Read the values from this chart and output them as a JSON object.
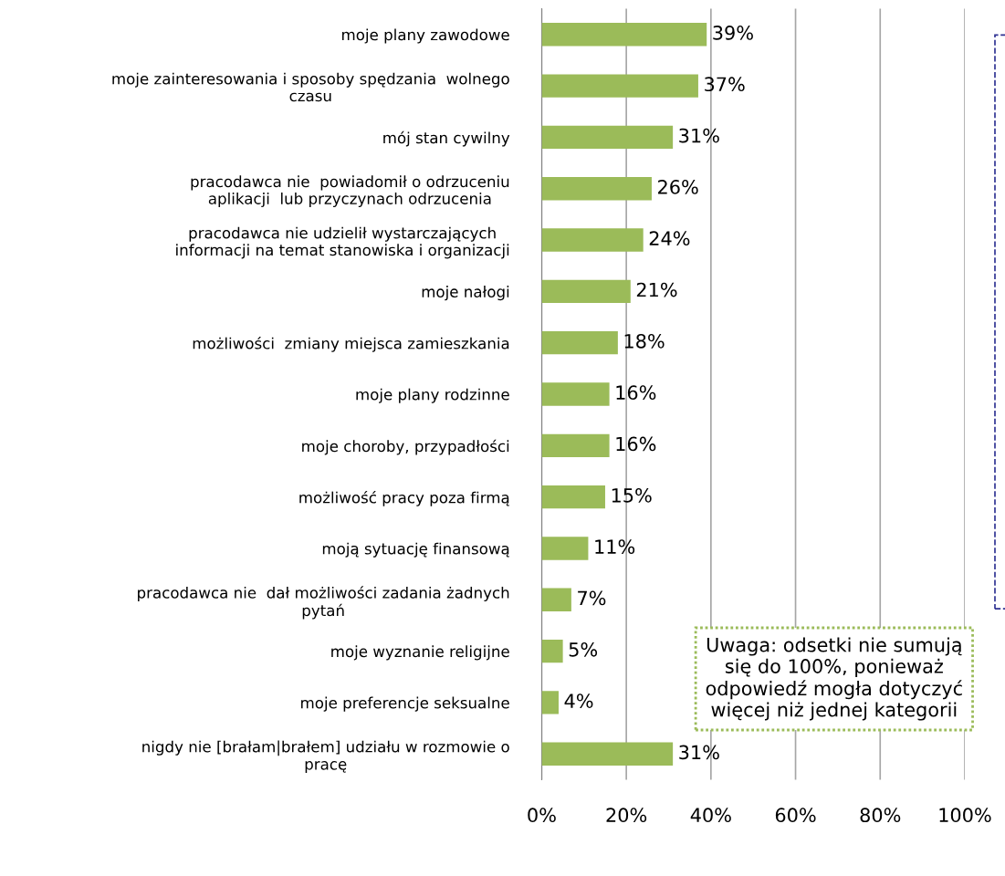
{
  "chart_data": {
    "type": "bar",
    "orientation": "horizontal",
    "categories": [
      "moje plany zawodowe",
      "moje zainteresowania i sposoby spędzania  wolnego\nczasu",
      "mój stan cywilny",
      "pracodawca nie  powiadomił o odrzuceniu\naplikacji  lub przyczynach odrzucenia",
      "pracodawca nie udzielił wystarczających\ninformacji na temat stanowiska i organizacji",
      "moje nałogi",
      "możliwości  zmiany miejsca zamieszkania",
      "moje plany rodzinne",
      "moje choroby, przypadłości",
      "możliwość pracy poza firmą",
      "moją sytuację finansową",
      "pracodawca nie  dał możliwości zadania żadnych\npytań",
      "moje wyznanie religijne",
      "moje preferencje seksualne",
      "nigdy nie [brałam|brałem] udziału w rozmowie o\npracę"
    ],
    "values": [
      39,
      37,
      31,
      26,
      24,
      21,
      18,
      16,
      16,
      15,
      11,
      7,
      5,
      4,
      31
    ],
    "value_labels": [
      "39%",
      "37%",
      "31%",
      "26%",
      "24%",
      "21%",
      "18%",
      "16%",
      "16%",
      "15%",
      "11%",
      "7%",
      "5%",
      "4%",
      "31%"
    ],
    "color": "#9bbb59",
    "xlim": [
      0,
      100
    ],
    "xticks": [
      {
        "value": 0,
        "label": "0%"
      },
      {
        "value": 20,
        "label": "20%"
      },
      {
        "value": 40,
        "label": "40%"
      },
      {
        "value": 60,
        "label": "60%"
      },
      {
        "value": 80,
        "label": "80%"
      },
      {
        "value": 100,
        "label": "100%"
      }
    ],
    "grid": "x",
    "legend": false,
    "annotations": [
      "Uwaga: odsetki nie sumują\nsię do 100%, ponieważ\nodpowiedź mogła dotyczyć\nwięcej niż jednej kategorii"
    ]
  }
}
